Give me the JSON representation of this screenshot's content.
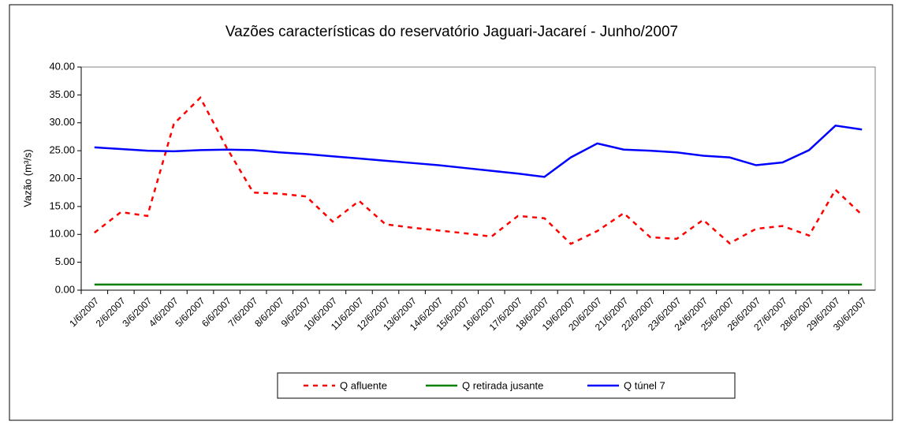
{
  "chart_data": {
    "type": "line",
    "title": "Vazões características do  reservatório Jaguari-Jacareí - Junho/2007",
    "ylabel": "Vazão (m³/s)",
    "categories": [
      "1/6/2007",
      "2/6/2007",
      "3/6/2007",
      "4/6/2007",
      "5/6/2007",
      "6/6/2007",
      "7/6/2007",
      "8/6/2007",
      "9/6/2007",
      "10/6/2007",
      "11/6/2007",
      "12/6/2007",
      "13/6/2007",
      "14/6/2007",
      "15/6/2007",
      "16/6/2007",
      "17/6/2007",
      "18/6/2007",
      "19/6/2007",
      "20/6/2007",
      "21/6/2007",
      "22/6/2007",
      "23/6/2007",
      "24/6/2007",
      "25/6/2007",
      "26/6/2007",
      "27/6/2007",
      "28/6/2007",
      "29/6/2007",
      "30/6/2007"
    ],
    "series": [
      {
        "name": "Q afluente",
        "color": "#ff0000",
        "dashed": true,
        "values": [
          10.3,
          14.0,
          13.3,
          29.8,
          34.5,
          25.5,
          17.5,
          17.3,
          16.8,
          12.3,
          16.0,
          11.8,
          11.2,
          10.7,
          10.2,
          9.6,
          13.3,
          12.9,
          8.3,
          10.6,
          13.8,
          9.5,
          9.2,
          12.6,
          8.4,
          11.0,
          11.5,
          9.8,
          18.0,
          13.5
        ]
      },
      {
        "name": "Q retirada jusante",
        "color": "#008000",
        "dashed": false,
        "values": [
          1,
          1,
          1,
          1,
          1,
          1,
          1,
          1,
          1,
          1,
          1,
          1,
          1,
          1,
          1,
          1,
          1,
          1,
          1,
          1,
          1,
          1,
          1,
          1,
          1,
          1,
          1,
          1,
          1,
          1
        ]
      },
      {
        "name": "Q túnel 7",
        "color": "#0000ff",
        "dashed": false,
        "values": [
          25.6,
          25.3,
          25.0,
          24.9,
          25.1,
          25.2,
          25.1,
          24.7,
          24.4,
          24.0,
          23.6,
          23.2,
          22.8,
          22.4,
          21.9,
          21.4,
          20.9,
          20.3,
          23.8,
          26.3,
          25.2,
          25.0,
          24.7,
          24.1,
          23.8,
          22.4,
          22.9,
          25.1,
          29.5,
          28.8
        ]
      }
    ],
    "ylim": [
      0,
      40
    ],
    "yticks": [
      {
        "value": 0,
        "label": "0.00"
      },
      {
        "value": 5,
        "label": "5.00"
      },
      {
        "value": 10,
        "label": "10.00"
      },
      {
        "value": 15,
        "label": "15.00"
      },
      {
        "value": 20,
        "label": "20.00"
      },
      {
        "value": 25,
        "label": "25.00"
      },
      {
        "value": 30,
        "label": "30.00"
      },
      {
        "value": 35,
        "label": "35.00"
      },
      {
        "value": 40,
        "label": "40.00"
      }
    ],
    "grid": false,
    "legend": "bottom"
  }
}
